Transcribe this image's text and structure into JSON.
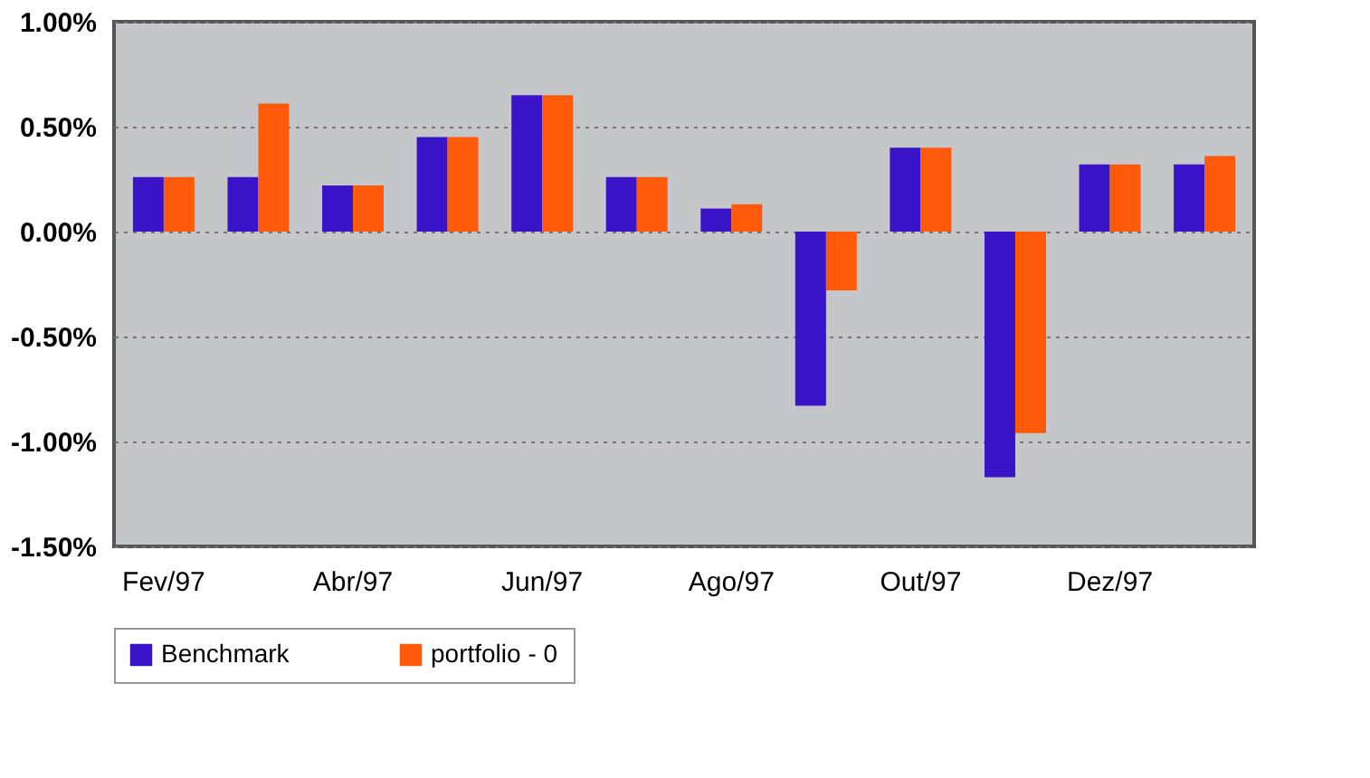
{
  "chart_data": {
    "type": "bar",
    "categories": [
      "Fev/97",
      null,
      "Abr/97",
      null,
      "Jun/97",
      null,
      "Ago/97",
      null,
      "Out/97",
      null,
      "Dez/97",
      null
    ],
    "series": [
      {
        "name": "Benchmark",
        "color": "#3a14c8",
        "values": [
          0.26,
          0.26,
          0.22,
          0.45,
          0.65,
          0.26,
          0.11,
          -0.83,
          0.4,
          -1.17,
          0.32,
          0.32
        ]
      },
      {
        "name": "portfolio - 0",
        "color": "#ff5a0a",
        "values": [
          0.26,
          0.61,
          0.22,
          0.45,
          0.65,
          0.26,
          0.13,
          -0.28,
          0.4,
          -0.96,
          0.32,
          0.36
        ]
      }
    ],
    "ylim": [
      -1.5,
      1.0
    ],
    "yticks": [
      {
        "value": -1.5,
        "label": "-1.50%"
      },
      {
        "value": -1.0,
        "label": "-1.00%"
      },
      {
        "value": -0.5,
        "label": "-0.50%"
      },
      {
        "value": 0,
        "label": "0.00%"
      },
      {
        "value": 0.5,
        "label": "0.50%"
      },
      {
        "value": 1.0,
        "label": "1.00%"
      }
    ],
    "grid": "y",
    "legend": "bottom"
  }
}
